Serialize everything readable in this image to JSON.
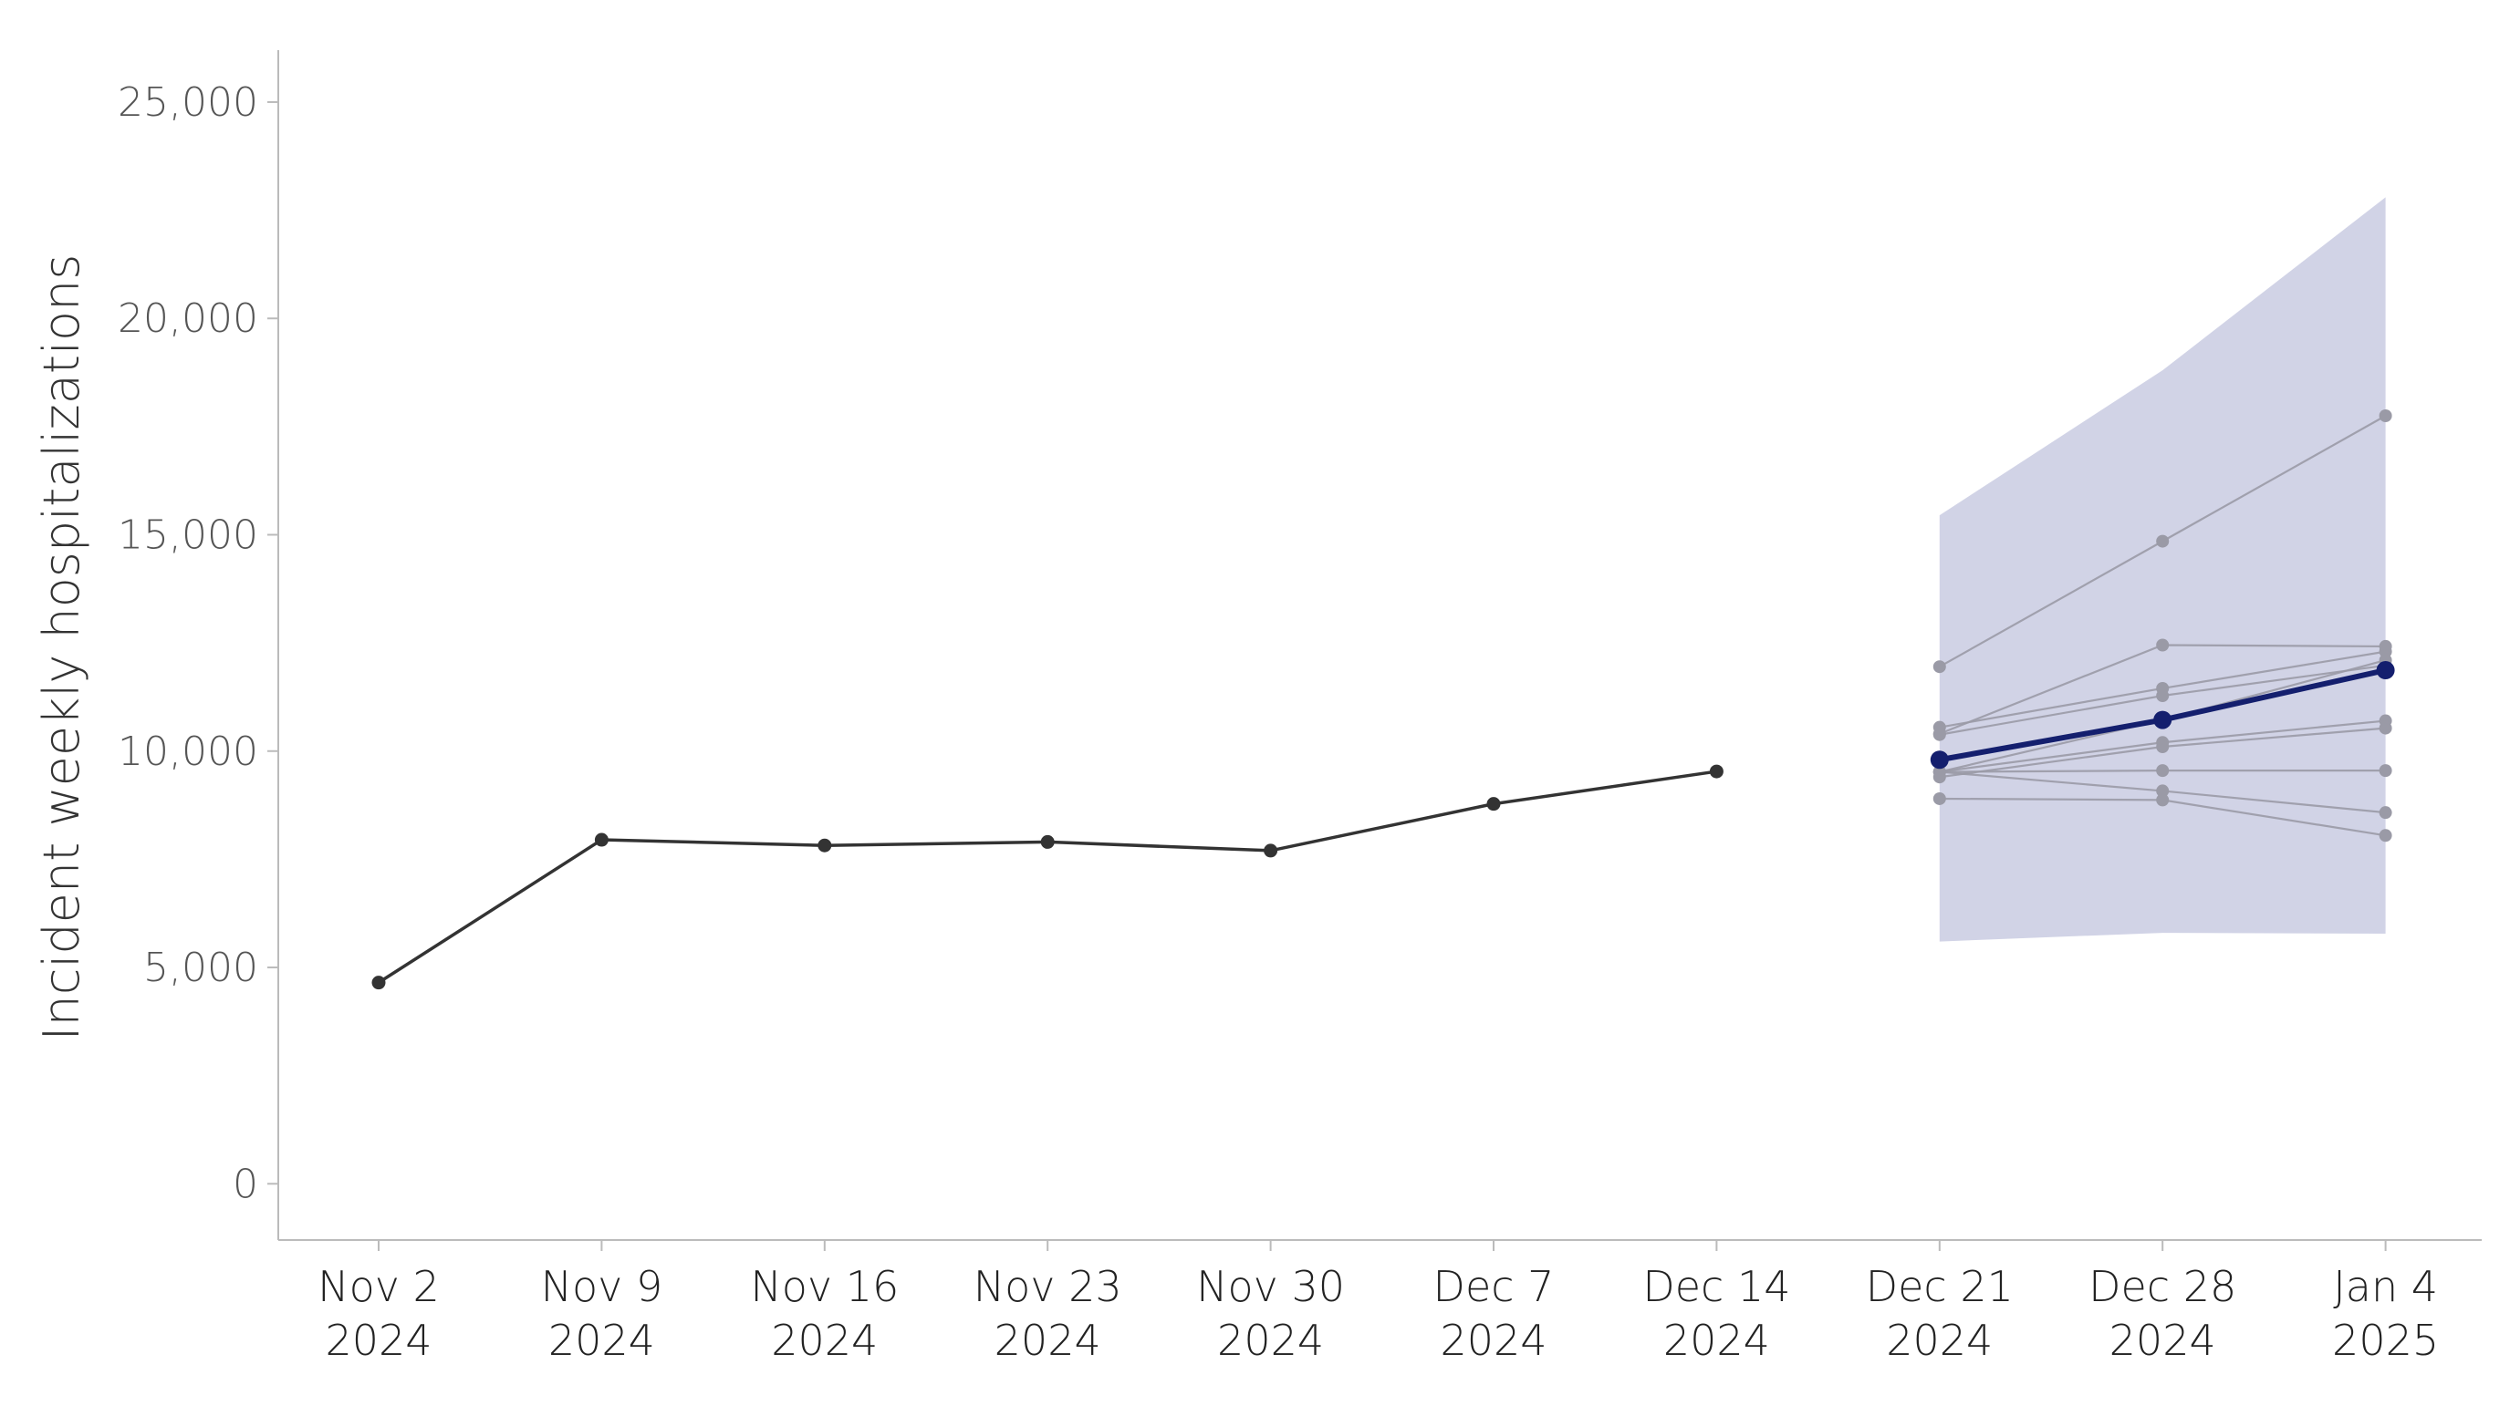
{
  "chart_data": {
    "type": "line",
    "title": "",
    "xlabel": "",
    "ylabel": "Incident weekly hospitalizations",
    "ylim": [
      -1300,
      26200
    ],
    "yticks": [
      0,
      5000,
      10000,
      15000,
      20000,
      25000
    ],
    "ytick_labels": [
      "0",
      "5,000",
      "10,000",
      "15,000",
      "20,000",
      "25,000"
    ],
    "grid": false,
    "legend": "none",
    "x": [
      "2024-11-02",
      "2024-11-09",
      "2024-11-16",
      "2024-11-23",
      "2024-11-30",
      "2024-12-07",
      "2024-12-14",
      "2024-12-21",
      "2024-12-28",
      "2025-01-04"
    ],
    "xtick_labels": [
      {
        "line1": "Nov 2",
        "line2": "2024"
      },
      {
        "line1": "Nov 9",
        "line2": "2024"
      },
      {
        "line1": "Nov 16",
        "line2": "2024"
      },
      {
        "line1": "Nov 23",
        "line2": "2024"
      },
      {
        "line1": "Nov 30",
        "line2": "2024"
      },
      {
        "line1": "Dec 7",
        "line2": "2024"
      },
      {
        "line1": "Dec 14",
        "line2": "2024"
      },
      {
        "line1": "Dec 21",
        "line2": "2024"
      },
      {
        "line1": "Dec 28",
        "line2": "2024"
      },
      {
        "line1": "Jan 4",
        "line2": "2025"
      }
    ],
    "observed": {
      "x": [
        "2024-11-02",
        "2024-11-09",
        "2024-11-16",
        "2024-11-23",
        "2024-11-30",
        "2024-12-07",
        "2024-12-14"
      ],
      "values": [
        4650,
        7950,
        7820,
        7900,
        7700,
        8780,
        9530
      ],
      "color": "#333333"
    },
    "forecast_interval": {
      "x": [
        "2024-12-21",
        "2024-12-28",
        "2025-01-04"
      ],
      "lower": [
        5600,
        5800,
        5780
      ],
      "upper": [
        15450,
        18800,
        22800
      ],
      "color": "#d1d3e6"
    },
    "forecast_median": {
      "x": [
        "2024-12-21",
        "2024-12-28",
        "2025-01-04"
      ],
      "values": [
        9800,
        10720,
        11870
      ],
      "color": "#141f6e"
    },
    "model_forecasts": {
      "x": [
        "2024-12-21",
        "2024-12-28",
        "2025-01-04"
      ],
      "color": "#9a9aa6",
      "series": [
        {
          "values": [
            11950,
            14850,
            17750
          ]
        },
        {
          "values": [
            10400,
            12450,
            12420
          ]
        },
        {
          "values": [
            10550,
            11450,
            12300
          ]
        },
        {
          "values": [
            10380,
            11280,
            11980
          ]
        },
        {
          "values": [
            9520,
            10720,
            12100
          ]
        },
        {
          "values": [
            9520,
            10200,
            10700
          ]
        },
        {
          "values": [
            9400,
            10100,
            10530
          ]
        },
        {
          "values": [
            9520,
            9550,
            9550
          ]
        },
        {
          "values": [
            9520,
            9080,
            8580
          ]
        },
        {
          "values": [
            8900,
            8870,
            8050
          ]
        }
      ]
    }
  }
}
